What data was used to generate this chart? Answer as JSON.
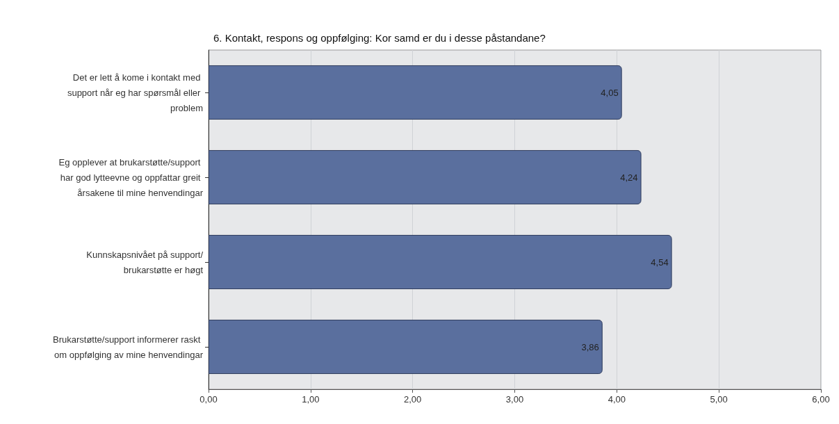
{
  "chart_data": {
    "type": "bar",
    "orientation": "horizontal",
    "title": "6. Kontakt, respons og oppfølging: Kor samd er du i desse påstandane?",
    "categories": [
      "Det er lett å kome i kontakt med support når eg har spørsmål eller problem",
      "Eg opplever at brukarstøtte/support har god lytteevne og oppfattar greit årsakene til mine henvendingar",
      "Kunnskapsnivået på support/brukarstøtte er høgt",
      "Brukarstøtte/support informerer raskt om oppfølging av mine henvendingar"
    ],
    "values": [
      4.05,
      4.24,
      4.54,
      3.86
    ],
    "value_labels": [
      "4,05",
      "4,24",
      "4,54",
      "3,86"
    ],
    "color": "#5a6f9e",
    "xlim": [
      0,
      6
    ],
    "xticks": [
      {
        "value": 0,
        "label": "0,00"
      },
      {
        "value": 1,
        "label": "1,00"
      },
      {
        "value": 2,
        "label": "2,00"
      },
      {
        "value": 3,
        "label": "3,00"
      },
      {
        "value": 4,
        "label": "4,00"
      },
      {
        "value": 5,
        "label": "5,00"
      },
      {
        "value": 6,
        "label": "6,00"
      }
    ],
    "grid": "x"
  }
}
